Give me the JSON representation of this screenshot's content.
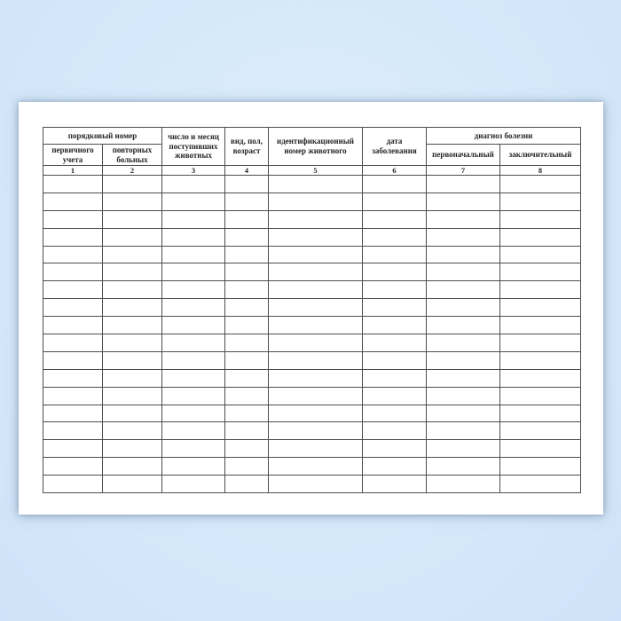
{
  "background_color": "#d7e9fb",
  "page_color": "#ffffff",
  "table": {
    "border_color": "#4d4d4d",
    "group_headers": [
      {
        "label": "порядковый номер"
      },
      {
        "label": "диагноз болезни"
      }
    ],
    "columns": [
      {
        "number": "1",
        "header": "первичного\nучета"
      },
      {
        "number": "2",
        "header": "повторных\nбольных"
      },
      {
        "number": "3",
        "header": "число и месяц\nпоступивших\nживотных"
      },
      {
        "number": "4",
        "header": "вид, пол,\nвозраст"
      },
      {
        "number": "5",
        "header": "идентификационный\nномер животного"
      },
      {
        "number": "6",
        "header": "дата\nзаболевания"
      },
      {
        "number": "7",
        "header": "первоначальный"
      },
      {
        "number": "8",
        "header": "заключительный"
      }
    ],
    "empty_row_count": 18,
    "cell_values": []
  }
}
